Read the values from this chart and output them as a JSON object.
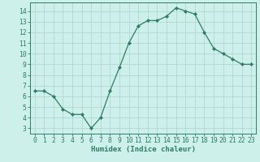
{
  "xlabel": "Humidex (Indice chaleur)",
  "x": [
    0,
    1,
    2,
    3,
    4,
    5,
    6,
    7,
    8,
    9,
    10,
    11,
    12,
    13,
    14,
    15,
    16,
    17,
    18,
    19,
    20,
    21,
    22,
    23
  ],
  "y": [
    6.5,
    6.5,
    6.0,
    4.8,
    4.3,
    4.3,
    3.0,
    4.0,
    6.5,
    8.7,
    11.0,
    12.6,
    13.1,
    13.1,
    13.5,
    14.3,
    14.0,
    13.7,
    12.0,
    10.5,
    10.0,
    9.5,
    9.0,
    9.0
  ],
  "line_color": "#2e7d62",
  "marker": "D",
  "marker_size": 2.2,
  "bg_color": "#cef0ea",
  "grid_color": "#b0d8d2",
  "ylim": [
    2.5,
    14.8
  ],
  "xlim": [
    -0.5,
    23.5
  ],
  "yticks": [
    3,
    4,
    5,
    6,
    7,
    8,
    9,
    10,
    11,
    12,
    13,
    14
  ],
  "xticks": [
    0,
    1,
    2,
    3,
    4,
    5,
    6,
    7,
    8,
    9,
    10,
    11,
    12,
    13,
    14,
    15,
    16,
    17,
    18,
    19,
    20,
    21,
    22,
    23
  ],
  "xtick_labels": [
    "0",
    "1",
    "2",
    "3",
    "4",
    "5",
    "6",
    "7",
    "8",
    "9",
    "10",
    "11",
    "12",
    "13",
    "14",
    "15",
    "16",
    "17",
    "18",
    "19",
    "20",
    "21",
    "22",
    "23"
  ],
  "tick_color": "#2e7d62",
  "axis_color": "#2e7d62",
  "label_fontsize": 6.5,
  "tick_fontsize": 5.8
}
